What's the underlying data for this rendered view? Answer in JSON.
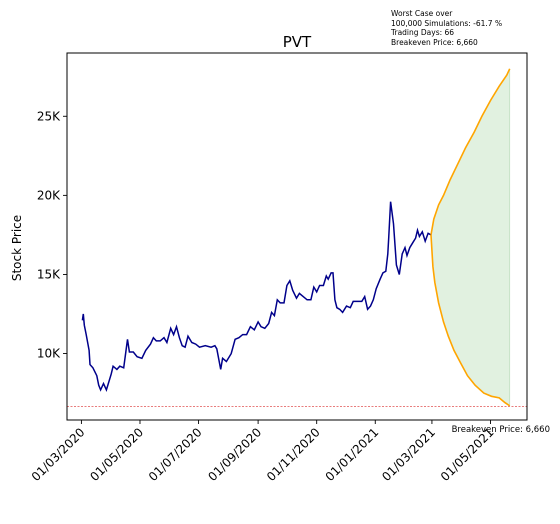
{
  "chart_data": {
    "type": "line",
    "title": "PVT",
    "ylabel": "Stock Price",
    "xlabel": "",
    "annotation": [
      "Worst Case over",
      "100,000 Simulations: -61.7 %",
      "Trading Days: 66",
      "Breakeven Price: 6,660"
    ],
    "breakeven": {
      "value": 6660,
      "label": "Breakeven Price: 6,660"
    },
    "x_range": [
      "2020-02-15",
      "2021-06-08"
    ],
    "y_range": [
      5800,
      29000
    ],
    "y_ticks": [
      {
        "value": 10000,
        "label": "10K"
      },
      {
        "value": 15000,
        "label": "15K"
      },
      {
        "value": 20000,
        "label": "20K"
      },
      {
        "value": 25000,
        "label": "25K"
      }
    ],
    "x_ticks": [
      {
        "value": "2020-03-01",
        "label": "01/03/2020"
      },
      {
        "value": "2020-05-01",
        "label": "01/05/2020"
      },
      {
        "value": "2020-07-01",
        "label": "01/07/2020"
      },
      {
        "value": "2020-09-01",
        "label": "01/09/2020"
      },
      {
        "value": "2020-11-01",
        "label": "01/11/2020"
      },
      {
        "value": "2021-01-01",
        "label": "01/01/2021"
      },
      {
        "value": "2021-03-01",
        "label": "01/03/2021"
      },
      {
        "value": "2021-05-01",
        "label": "01/05/2021"
      }
    ],
    "series": [
      {
        "role": "historical",
        "color": "#00008b",
        "points": [
          [
            "2020-03-02",
            12100
          ],
          [
            "2020-03-03",
            12500
          ],
          [
            "2020-03-04",
            11800
          ],
          [
            "2020-03-06",
            11200
          ],
          [
            "2020-03-09",
            10200
          ],
          [
            "2020-03-10",
            9300
          ],
          [
            "2020-03-13",
            9100
          ],
          [
            "2020-03-17",
            8600
          ],
          [
            "2020-03-19",
            8000
          ],
          [
            "2020-03-21",
            7700
          ],
          [
            "2020-03-24",
            8100
          ],
          [
            "2020-03-27",
            7700
          ],
          [
            "2020-04-01",
            8700
          ],
          [
            "2020-04-03",
            9200
          ],
          [
            "2020-04-07",
            9000
          ],
          [
            "2020-04-10",
            9200
          ],
          [
            "2020-04-14",
            9100
          ],
          [
            "2020-04-16",
            10000
          ],
          [
            "2020-04-18",
            10900
          ],
          [
            "2020-04-20",
            10100
          ],
          [
            "2020-04-24",
            10100
          ],
          [
            "2020-04-28",
            9800
          ],
          [
            "2020-05-03",
            9700
          ],
          [
            "2020-05-07",
            10200
          ],
          [
            "2020-05-12",
            10600
          ],
          [
            "2020-05-15",
            11000
          ],
          [
            "2020-05-18",
            10800
          ],
          [
            "2020-05-22",
            10800
          ],
          [
            "2020-05-26",
            11000
          ],
          [
            "2020-05-29",
            10700
          ],
          [
            "2020-06-02",
            11600
          ],
          [
            "2020-06-05",
            11200
          ],
          [
            "2020-06-08",
            11700
          ],
          [
            "2020-06-11",
            11000
          ],
          [
            "2020-06-14",
            10500
          ],
          [
            "2020-06-17",
            10400
          ],
          [
            "2020-06-20",
            11100
          ],
          [
            "2020-06-24",
            10700
          ],
          [
            "2020-06-28",
            10600
          ],
          [
            "2020-07-02",
            10400
          ],
          [
            "2020-07-08",
            10500
          ],
          [
            "2020-07-14",
            10400
          ],
          [
            "2020-07-18",
            10500
          ],
          [
            "2020-07-20",
            10300
          ],
          [
            "2020-07-24",
            9000
          ],
          [
            "2020-07-26",
            9700
          ],
          [
            "2020-07-30",
            9500
          ],
          [
            "2020-08-04",
            10000
          ],
          [
            "2020-08-08",
            10900
          ],
          [
            "2020-08-12",
            11000
          ],
          [
            "2020-08-16",
            11200
          ],
          [
            "2020-08-20",
            11200
          ],
          [
            "2020-08-24",
            11700
          ],
          [
            "2020-08-28",
            11500
          ],
          [
            "2020-09-01",
            12000
          ],
          [
            "2020-09-04",
            11700
          ],
          [
            "2020-09-08",
            11600
          ],
          [
            "2020-09-12",
            11900
          ],
          [
            "2020-09-15",
            12600
          ],
          [
            "2020-09-18",
            12400
          ],
          [
            "2020-09-21",
            13400
          ],
          [
            "2020-09-24",
            13200
          ],
          [
            "2020-09-28",
            13200
          ],
          [
            "2020-10-01",
            14300
          ],
          [
            "2020-10-04",
            14600
          ],
          [
            "2020-10-07",
            14000
          ],
          [
            "2020-10-11",
            13500
          ],
          [
            "2020-10-14",
            13800
          ],
          [
            "2020-10-18",
            13600
          ],
          [
            "2020-10-22",
            13400
          ],
          [
            "2020-10-26",
            13400
          ],
          [
            "2020-10-29",
            14200
          ],
          [
            "2020-11-01",
            13900
          ],
          [
            "2020-11-04",
            14300
          ],
          [
            "2020-11-08",
            14300
          ],
          [
            "2020-11-11",
            14900
          ],
          [
            "2020-11-13",
            14700
          ],
          [
            "2020-11-16",
            15100
          ],
          [
            "2020-11-18",
            15100
          ],
          [
            "2020-11-20",
            13400
          ],
          [
            "2020-11-22",
            12900
          ],
          [
            "2020-11-25",
            12800
          ],
          [
            "2020-11-28",
            12600
          ],
          [
            "2020-12-02",
            13000
          ],
          [
            "2020-12-06",
            12900
          ],
          [
            "2020-12-09",
            13300
          ],
          [
            "2020-12-14",
            13300
          ],
          [
            "2020-12-18",
            13300
          ],
          [
            "2020-12-21",
            13600
          ],
          [
            "2020-12-24",
            12800
          ],
          [
            "2020-12-27",
            13000
          ],
          [
            "2020-12-30",
            13400
          ],
          [
            "2021-01-02",
            14100
          ],
          [
            "2021-01-06",
            14700
          ],
          [
            "2021-01-09",
            15100
          ],
          [
            "2021-01-12",
            15200
          ],
          [
            "2021-01-14",
            16300
          ],
          [
            "2021-01-15",
            17300
          ],
          [
            "2021-01-17",
            19600
          ],
          [
            "2021-01-20",
            18200
          ],
          [
            "2021-01-23",
            15600
          ],
          [
            "2021-01-26",
            15000
          ],
          [
            "2021-01-29",
            16300
          ],
          [
            "2021-02-01",
            16700
          ],
          [
            "2021-02-03",
            16200
          ],
          [
            "2021-02-06",
            16700
          ],
          [
            "2021-02-09",
            17000
          ],
          [
            "2021-02-12",
            17300
          ],
          [
            "2021-02-14",
            17800
          ],
          [
            "2021-02-16",
            17400
          ],
          [
            "2021-02-19",
            17700
          ],
          [
            "2021-02-22",
            17100
          ],
          [
            "2021-02-25",
            17600
          ],
          [
            "2021-02-28",
            17500
          ]
        ]
      },
      {
        "role": "simulation-upper",
        "color": "#ffa500",
        "points": [
          [
            "2021-02-28",
            17500
          ],
          [
            "2021-03-03",
            18500
          ],
          [
            "2021-03-08",
            19400
          ],
          [
            "2021-03-13",
            20000
          ],
          [
            "2021-03-20",
            21000
          ],
          [
            "2021-03-28",
            22000
          ],
          [
            "2021-04-05",
            23000
          ],
          [
            "2021-04-14",
            24000
          ],
          [
            "2021-04-22",
            25000
          ],
          [
            "2021-05-01",
            26000
          ],
          [
            "2021-05-10",
            26900
          ],
          [
            "2021-05-18",
            27600
          ],
          [
            "2021-05-21",
            28000
          ]
        ]
      },
      {
        "role": "simulation-lower",
        "color": "#ffa500",
        "points": [
          [
            "2021-02-28",
            17500
          ],
          [
            "2021-03-02",
            15500
          ],
          [
            "2021-03-04",
            14500
          ],
          [
            "2021-03-08",
            13200
          ],
          [
            "2021-03-13",
            12000
          ],
          [
            "2021-03-18",
            11100
          ],
          [
            "2021-03-24",
            10200
          ],
          [
            "2021-03-31",
            9400
          ],
          [
            "2021-04-07",
            8600
          ],
          [
            "2021-04-15",
            8000
          ],
          [
            "2021-04-24",
            7500
          ],
          [
            "2021-05-02",
            7300
          ],
          [
            "2021-05-10",
            7200
          ],
          [
            "2021-05-16",
            6900
          ],
          [
            "2021-05-21",
            6700
          ]
        ]
      }
    ],
    "fill_color": "#c9e6c6",
    "breakeven_color": "#e05050"
  }
}
